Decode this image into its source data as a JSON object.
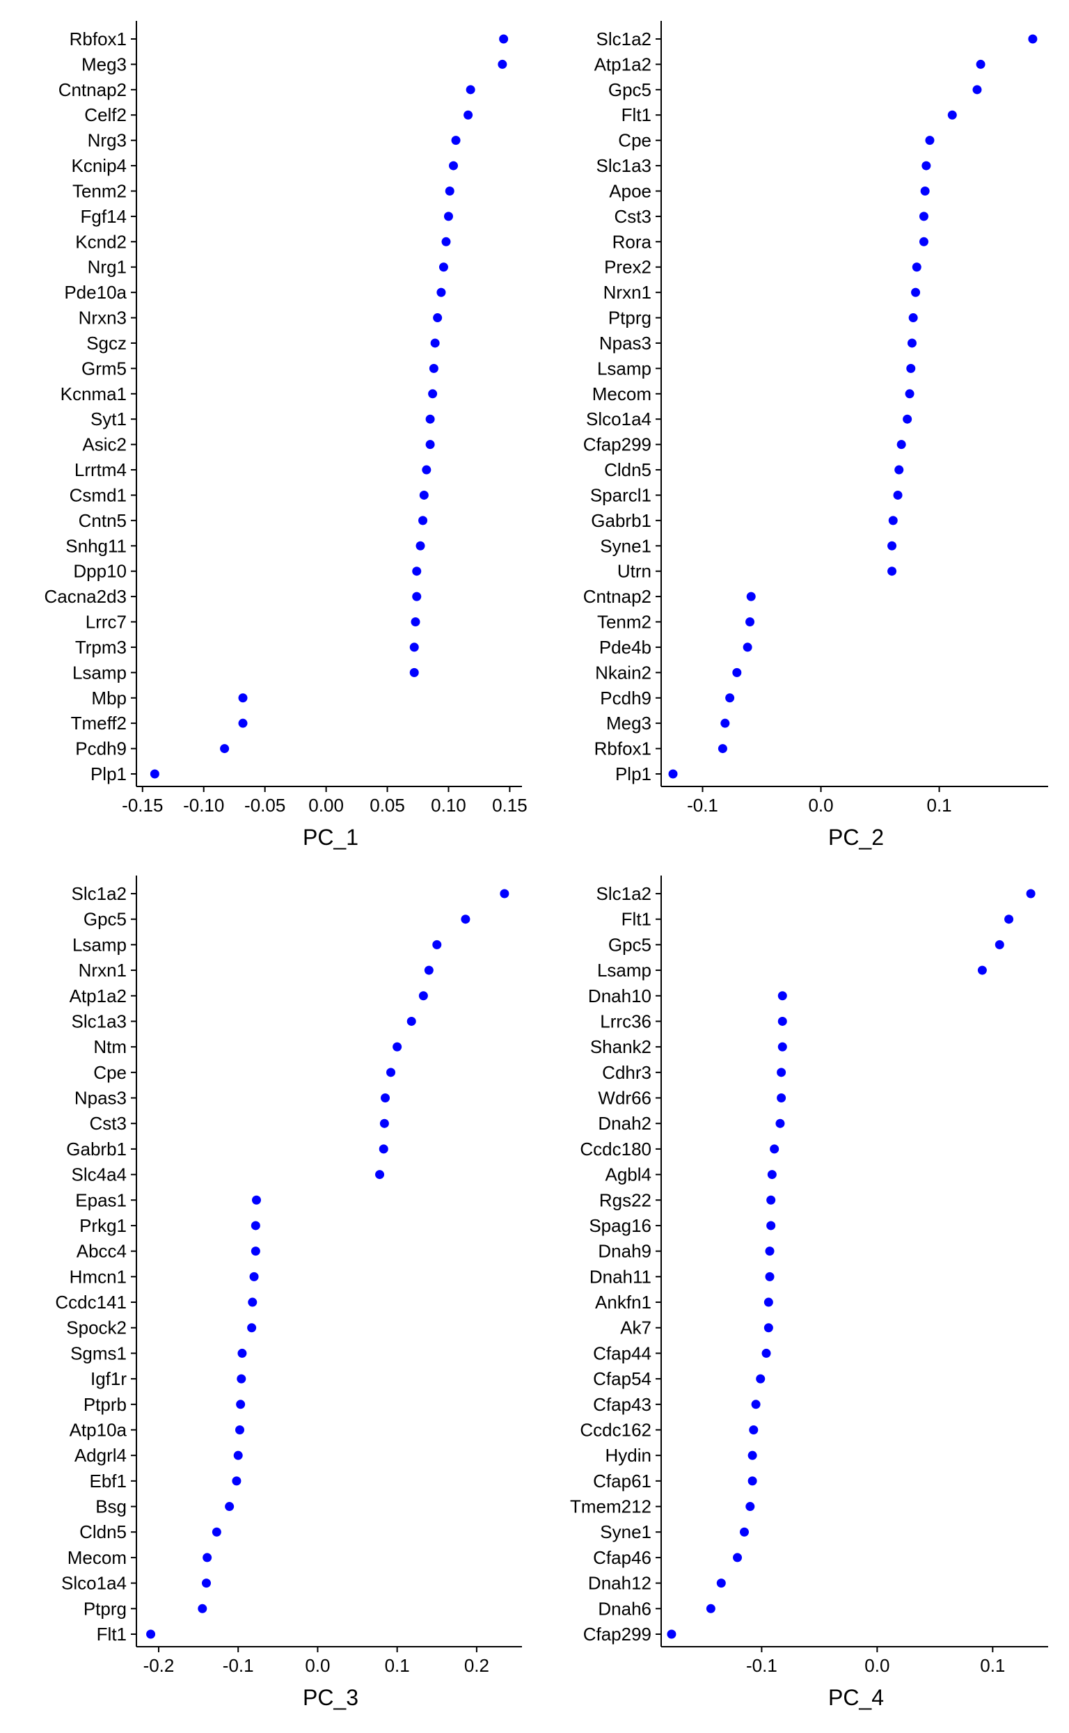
{
  "chart_data": [
    {
      "type": "scatter",
      "xlabel": "PC_1",
      "ylabel": "",
      "xlim": [
        -0.155,
        0.16
      ],
      "xticks": [
        -0.15,
        -0.1,
        -0.05,
        0.0,
        0.05,
        0.1,
        0.15
      ],
      "xtick_labels": [
        "-0.15",
        "-0.10",
        "-0.05",
        "0.00",
        "0.05",
        "0.10",
        "0.15"
      ],
      "grid": false,
      "point_color": "#0000ff",
      "genes": [
        "Rbfox1",
        "Meg3",
        "Cntnap2",
        "Celf2",
        "Nrg3",
        "Kcnip4",
        "Tenm2",
        "Fgf14",
        "Kcnd2",
        "Nrg1",
        "Pde10a",
        "Nrxn3",
        "Sgcz",
        "Grm5",
        "Kcnma1",
        "Syt1",
        "Asic2",
        "Lrrtm4",
        "Csmd1",
        "Cntn5",
        "Snhg11",
        "Dpp10",
        "Cacna2d3",
        "Lrrc7",
        "Trpm3",
        "Lsamp",
        "Mbp",
        "Tmeff2",
        "Pcdh9",
        "Plp1"
      ],
      "values": [
        0.145,
        0.144,
        0.118,
        0.116,
        0.106,
        0.104,
        0.101,
        0.1,
        0.098,
        0.096,
        0.094,
        0.091,
        0.089,
        0.088,
        0.087,
        0.085,
        0.085,
        0.082,
        0.08,
        0.079,
        0.077,
        0.074,
        0.074,
        0.073,
        0.072,
        0.072,
        -0.068,
        -0.068,
        -0.083,
        -0.14
      ]
    },
    {
      "type": "scatter",
      "xlabel": "PC_2",
      "ylabel": "",
      "xlim": [
        -0.135,
        0.192
      ],
      "xticks": [
        -0.1,
        0.0,
        0.1
      ],
      "xtick_labels": [
        "-0.1",
        "0.0",
        "0.1"
      ],
      "grid": false,
      "point_color": "#0000ff",
      "genes": [
        "Slc1a2",
        "Atp1a2",
        "Gpc5",
        "Flt1",
        "Cpe",
        "Slc1a3",
        "Apoe",
        "Cst3",
        "Rora",
        "Prex2",
        "Nrxn1",
        "Ptprg",
        "Npas3",
        "Lsamp",
        "Mecom",
        "Slco1a4",
        "Cfap299",
        "Cldn5",
        "Sparcl1",
        "Gabrb1",
        "Syne1",
        "Utrn",
        "Cntnap2",
        "Tenm2",
        "Pde4b",
        "Nkain2",
        "Pcdh9",
        "Meg3",
        "Rbfox1",
        "Plp1"
      ],
      "values": [
        0.179,
        0.135,
        0.132,
        0.111,
        0.092,
        0.089,
        0.088,
        0.087,
        0.087,
        0.081,
        0.08,
        0.078,
        0.077,
        0.076,
        0.075,
        0.073,
        0.068,
        0.066,
        0.065,
        0.061,
        0.06,
        0.06,
        -0.059,
        -0.06,
        -0.062,
        -0.071,
        -0.077,
        -0.081,
        -0.083,
        -0.125
      ]
    },
    {
      "type": "scatter",
      "xlabel": "PC_3",
      "ylabel": "",
      "xlim": [
        -0.228,
        0.257
      ],
      "xticks": [
        -0.2,
        -0.1,
        0.0,
        0.1,
        0.2
      ],
      "xtick_labels": [
        "-0.2",
        "-0.1",
        "0.0",
        "0.1",
        "0.2"
      ],
      "grid": false,
      "point_color": "#0000ff",
      "genes": [
        "Slc1a2",
        "Gpc5",
        "Lsamp",
        "Nrxn1",
        "Atp1a2",
        "Slc1a3",
        "Ntm",
        "Cpe",
        "Npas3",
        "Cst3",
        "Gabrb1",
        "Slc4a4",
        "Epas1",
        "Prkg1",
        "Abcc4",
        "Hmcn1",
        "Ccdc141",
        "Spock2",
        "Sgms1",
        "Igf1r",
        "Ptprb",
        "Atp10a",
        "Adgrl4",
        "Ebf1",
        "Bsg",
        "Cldn5",
        "Mecom",
        "Slco1a4",
        "Ptprg",
        "Flt1"
      ],
      "values": [
        0.235,
        0.186,
        0.15,
        0.14,
        0.133,
        0.118,
        0.1,
        0.092,
        0.085,
        0.084,
        0.083,
        0.078,
        -0.077,
        -0.078,
        -0.078,
        -0.08,
        -0.082,
        -0.083,
        -0.095,
        -0.096,
        -0.097,
        -0.098,
        -0.1,
        -0.102,
        -0.111,
        -0.127,
        -0.139,
        -0.14,
        -0.145,
        -0.21
      ]
    },
    {
      "type": "scatter",
      "xlabel": "PC_4",
      "ylabel": "",
      "xlim": [
        -0.187,
        0.148
      ],
      "xticks": [
        -0.1,
        0.0,
        0.1
      ],
      "xtick_labels": [
        "-0.1",
        "0.0",
        "0.1"
      ],
      "grid": false,
      "point_color": "#0000ff",
      "genes": [
        "Slc1a2",
        "Flt1",
        "Gpc5",
        "Lsamp",
        "Dnah10",
        "Lrrc36",
        "Shank2",
        "Cdhr3",
        "Wdr66",
        "Dnah2",
        "Ccdc180",
        "Agbl4",
        "Rgs22",
        "Spag16",
        "Dnah9",
        "Dnah11",
        "Ankfn1",
        "Ak7",
        "Cfap44",
        "Cfap54",
        "Cfap43",
        "Ccdc162",
        "Hydin",
        "Cfap61",
        "Tmem212",
        "Syne1",
        "Cfap46",
        "Dnah12",
        "Dnah6",
        "Cfap299"
      ],
      "values": [
        0.133,
        0.114,
        0.106,
        0.091,
        -0.082,
        -0.082,
        -0.082,
        -0.083,
        -0.083,
        -0.084,
        -0.089,
        -0.091,
        -0.092,
        -0.092,
        -0.093,
        -0.093,
        -0.094,
        -0.094,
        -0.096,
        -0.101,
        -0.105,
        -0.107,
        -0.108,
        -0.108,
        -0.11,
        -0.115,
        -0.121,
        -0.135,
        -0.144,
        -0.178
      ]
    }
  ]
}
